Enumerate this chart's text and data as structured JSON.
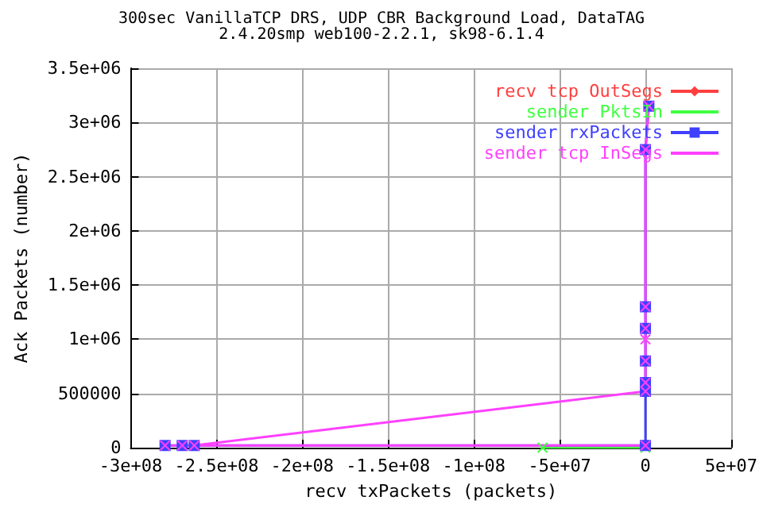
{
  "chart_data": {
    "type": "line",
    "title": "300sec VanillaTCP DRS, UDP CBR Background Load, DataTAG",
    "subtitle": "2.4.20smp web100-2.2.1, sk98-6.1.4",
    "xlabel": "recv txPackets (packets)",
    "ylabel": "Ack Packets (number)",
    "series": [
      {
        "name": "recv tcp OutSegs",
        "color": "#ff4040",
        "marker": "diamond"
      },
      {
        "name": "sender PktsIn",
        "color": "#40ff40",
        "marker": "cross",
        "x": [
          -60000000,
          0
        ],
        "values": [
          0,
          0
        ]
      },
      {
        "name": "sender rxPackets",
        "color": "#4040ff",
        "marker": "square",
        "x": [
          -280000000,
          -270000000,
          -263000000,
          0,
          0,
          0,
          0,
          0,
          0,
          0,
          2000000
        ],
        "values": [
          20000,
          20000,
          20000,
          20000,
          520000,
          600000,
          800000,
          1100000,
          1300000,
          2750000,
          3150000
        ]
      },
      {
        "name": "sender tcp InSegs",
        "color": "#ff40ff",
        "marker": "cross",
        "x": [
          0,
          -280000000,
          -270000000,
          -263000000,
          0,
          0,
          0,
          0,
          0,
          0,
          0,
          2000000
        ],
        "values": [
          20000,
          20000,
          20000,
          20000,
          520000,
          600000,
          800000,
          1000000,
          1100000,
          1300000,
          2750000,
          3150000
        ]
      }
    ],
    "xlim": [
      -300000000,
      50000000
    ],
    "xticks": [
      {
        "value": -300000000,
        "label": "-3e+08"
      },
      {
        "value": -250000000,
        "label": "-2.5e+08"
      },
      {
        "value": -200000000,
        "label": "-2e+08"
      },
      {
        "value": -150000000,
        "label": "-1.5e+08"
      },
      {
        "value": -100000000,
        "label": "-1e+08"
      },
      {
        "value": -50000000,
        "label": "-5e+07"
      },
      0,
      {
        "value": 50000000,
        "label": "5e+07"
      }
    ],
    "ylim": [
      0,
      3500000
    ],
    "yticks": [
      0,
      500000,
      {
        "value": 1000000,
        "label": "1e+06"
      },
      {
        "value": 1500000,
        "label": "1.5e+06"
      },
      {
        "value": 2000000,
        "label": "2e+06"
      },
      {
        "value": 2500000,
        "label": "2.5e+06"
      },
      {
        "value": 3000000,
        "label": "3e+06"
      },
      {
        "value": 3500000,
        "label": "3.5e+06"
      }
    ],
    "grid": true,
    "legend": "top right",
    "line_style": "solid"
  }
}
